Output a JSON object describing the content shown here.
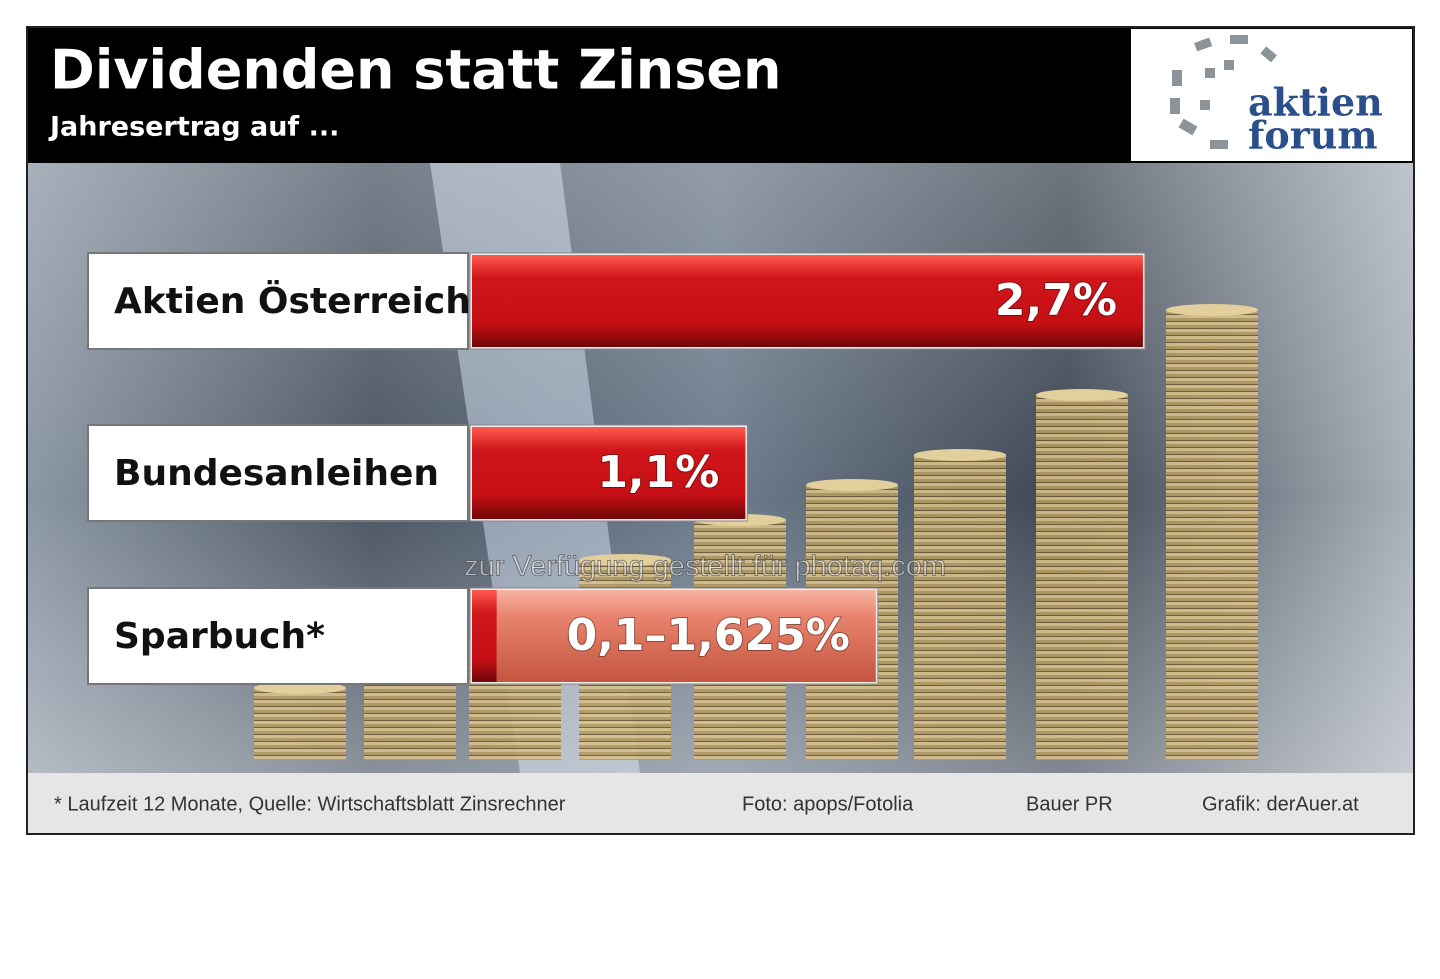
{
  "chart_data": {
    "type": "bar",
    "title": "Dividenden statt Zinsen",
    "subtitle": "Jahresertrag auf ...",
    "categories": [
      "Aktien Österreich",
      "Bundesanleihen",
      "Sparbuch*"
    ],
    "values": [
      2.7,
      1.1,
      1.625
    ],
    "range_start": [
      null,
      null,
      0.1
    ],
    "value_labels": [
      "2,7%",
      "1,1%",
      "0,1–1,625%"
    ],
    "color": "#d0161a",
    "range_color": "#e8826c",
    "footnote": "* Laufzeit 12 Monate, Quelle: Wirtschaftsblatt Zinsrechner",
    "photo_credit": "Foto: apops/Fotolia",
    "agency": "Bauer PR",
    "graphic_credit": "Grafik: derAuer.at",
    "watermark": "zur Verfügung gestellt für photaq.com",
    "logo": [
      "aktien",
      "forum"
    ]
  }
}
